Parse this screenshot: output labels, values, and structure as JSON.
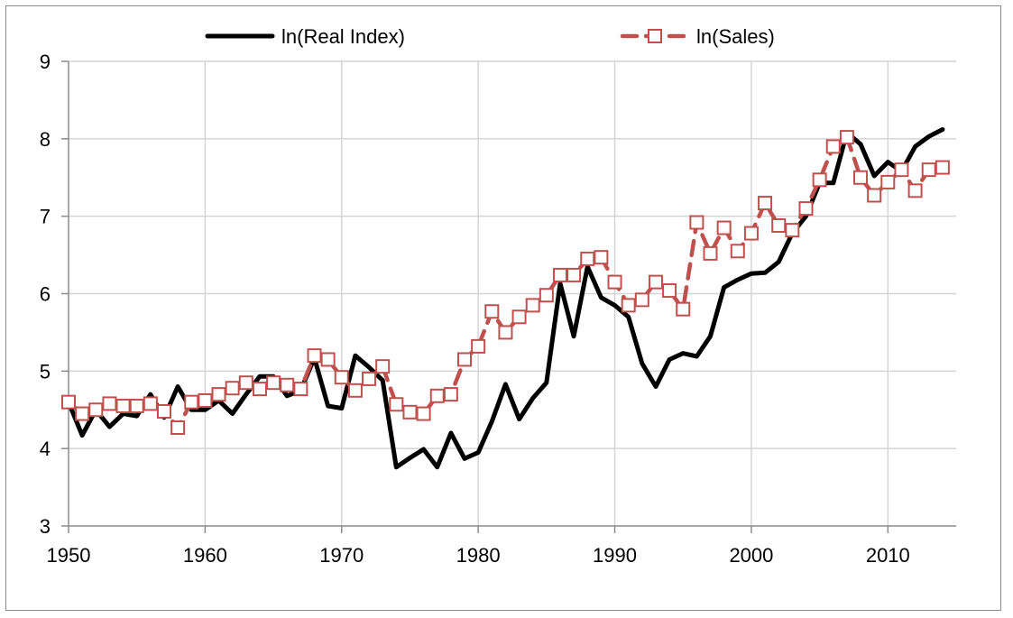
{
  "chart_data": {
    "type": "line",
    "title": "",
    "xlabel": "",
    "ylabel": "",
    "xlim": [
      1950,
      2015
    ],
    "ylim": [
      3,
      9
    ],
    "grid": true,
    "legend_position": "top",
    "x_ticks": [
      "1950",
      "1960",
      "1970",
      "1980",
      "1990",
      "2000",
      "2010"
    ],
    "y_ticks": [
      "3",
      "4",
      "5",
      "6",
      "7",
      "8",
      "9"
    ],
    "series": [
      {
        "name": "ln(Real Index)",
        "color": "#000000",
        "style": "solid",
        "marker": "none",
        "x": [
          1950,
          1951,
          1952,
          1953,
          1954,
          1955,
          1956,
          1957,
          1958,
          1959,
          1960,
          1961,
          1962,
          1963,
          1964,
          1965,
          1966,
          1967,
          1968,
          1969,
          1970,
          1971,
          1972,
          1973,
          1974,
          1975,
          1976,
          1977,
          1978,
          1979,
          1980,
          1981,
          1982,
          1983,
          1984,
          1985,
          1986,
          1987,
          1988,
          1989,
          1990,
          1991,
          1992,
          1993,
          1994,
          1995,
          1996,
          1997,
          1998,
          1999,
          2000,
          2001,
          2002,
          2003,
          2004,
          2005,
          2006,
          2007,
          2008,
          2009,
          2010,
          2011,
          2012,
          2013,
          2014
        ],
        "y": [
          4.6,
          4.17,
          4.5,
          4.28,
          4.45,
          4.42,
          4.7,
          4.4,
          4.8,
          4.5,
          4.5,
          4.62,
          4.45,
          4.7,
          4.93,
          4.93,
          4.68,
          4.75,
          5.17,
          4.55,
          4.52,
          5.2,
          5.05,
          4.88,
          3.76,
          3.88,
          3.99,
          3.76,
          4.2,
          3.87,
          3.95,
          4.35,
          4.83,
          4.38,
          4.65,
          4.85,
          6.13,
          5.45,
          6.35,
          5.95,
          5.85,
          5.7,
          5.1,
          4.8,
          5.15,
          5.23,
          5.19,
          5.45,
          6.08,
          6.18,
          6.26,
          6.27,
          6.41,
          6.78,
          7.0,
          7.43,
          7.43,
          8.08,
          7.93,
          7.52,
          7.7,
          7.58,
          7.9,
          8.03,
          8.12
        ]
      },
      {
        "name": "ln(Sales)",
        "color": "#c0504d",
        "style": "dashed",
        "marker": "square",
        "x": [
          1950,
          1951,
          1952,
          1953,
          1954,
          1955,
          1956,
          1957,
          1958,
          1959,
          1960,
          1961,
          1962,
          1963,
          1964,
          1965,
          1966,
          1967,
          1968,
          1969,
          1970,
          1971,
          1972,
          1973,
          1974,
          1975,
          1976,
          1977,
          1978,
          1979,
          1980,
          1981,
          1982,
          1983,
          1984,
          1985,
          1986,
          1987,
          1988,
          1989,
          1990,
          1991,
          1992,
          1993,
          1994,
          1995,
          1996,
          1997,
          1998,
          1999,
          2000,
          2001,
          2002,
          2003,
          2004,
          2005,
          2006,
          2007,
          2008,
          2009,
          2010,
          2011,
          2012,
          2013,
          2014
        ],
        "y": [
          4.6,
          4.45,
          4.5,
          4.58,
          4.55,
          4.55,
          4.58,
          4.48,
          4.27,
          4.6,
          4.62,
          4.7,
          4.78,
          4.85,
          4.77,
          4.85,
          4.82,
          4.77,
          5.2,
          5.15,
          4.92,
          4.75,
          4.9,
          5.06,
          4.57,
          4.47,
          4.45,
          4.68,
          4.7,
          5.15,
          5.32,
          5.77,
          5.5,
          5.7,
          5.85,
          5.98,
          6.24,
          6.24,
          6.45,
          6.47,
          6.15,
          5.85,
          5.92,
          6.15,
          6.04,
          5.8,
          6.92,
          6.52,
          6.85,
          6.55,
          6.78,
          7.17,
          6.88,
          6.82,
          7.1,
          7.47,
          7.9,
          8.02,
          7.5,
          7.27,
          7.44,
          7.6,
          7.33,
          7.6,
          7.63
        ]
      }
    ]
  }
}
